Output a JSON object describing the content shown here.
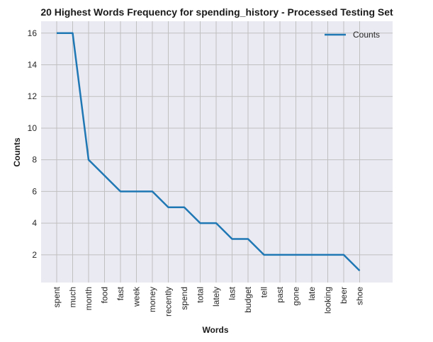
{
  "chart_data": {
    "type": "line",
    "title": "20 Highest Words Frequency for spending_history - Processed Testing Set",
    "xlabel": "Words",
    "ylabel": "Counts",
    "categories": [
      "spent",
      "much",
      "month",
      "food",
      "fast",
      "week",
      "money",
      "recently",
      "spend",
      "total",
      "lately",
      "last",
      "budget",
      "tell",
      "past",
      "gone",
      "late",
      "looking",
      "beer",
      "shoe"
    ],
    "series": [
      {
        "name": "Counts",
        "values": [
          16,
          16,
          8,
          7,
          6,
          6,
          6,
          5,
          5,
          4,
          4,
          3,
          3,
          2,
          2,
          2,
          2,
          2,
          2,
          1
        ]
      }
    ],
    "ylim": [
      0.25,
      16.75
    ],
    "yticks": [
      2,
      4,
      6,
      8,
      10,
      12,
      14,
      16
    ],
    "grid": true,
    "legend": "top-right",
    "colors": {
      "line": "#1f77b4",
      "plot_bg": "#eaeaf2",
      "grid": "#c0c0c0"
    }
  }
}
